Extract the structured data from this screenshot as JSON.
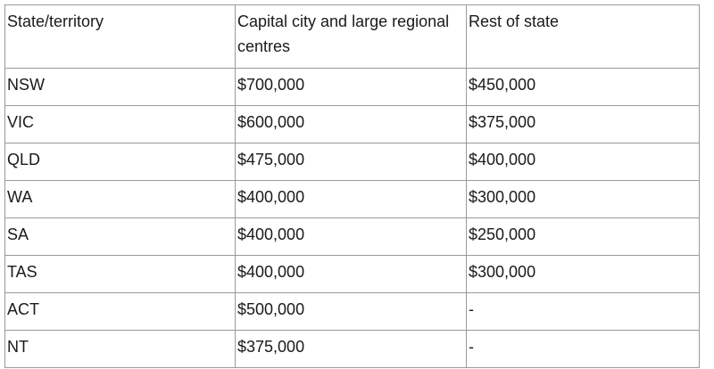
{
  "table": {
    "headers": [
      "State/territory",
      "Capital city and large regional centres",
      "Rest of state"
    ],
    "rows": [
      [
        "NSW",
        "$700,000",
        "$450,000"
      ],
      [
        "VIC",
        "$600,000",
        "$375,000"
      ],
      [
        "QLD",
        "$475,000",
        "$400,000"
      ],
      [
        "WA",
        "$400,000",
        "$300,000"
      ],
      [
        "SA",
        "$400,000",
        "$250,000"
      ],
      [
        "TAS",
        "$400,000",
        "$300,000"
      ],
      [
        "ACT",
        "$500,000",
        "-"
      ],
      [
        "NT",
        "$375,000",
        "-"
      ]
    ]
  }
}
